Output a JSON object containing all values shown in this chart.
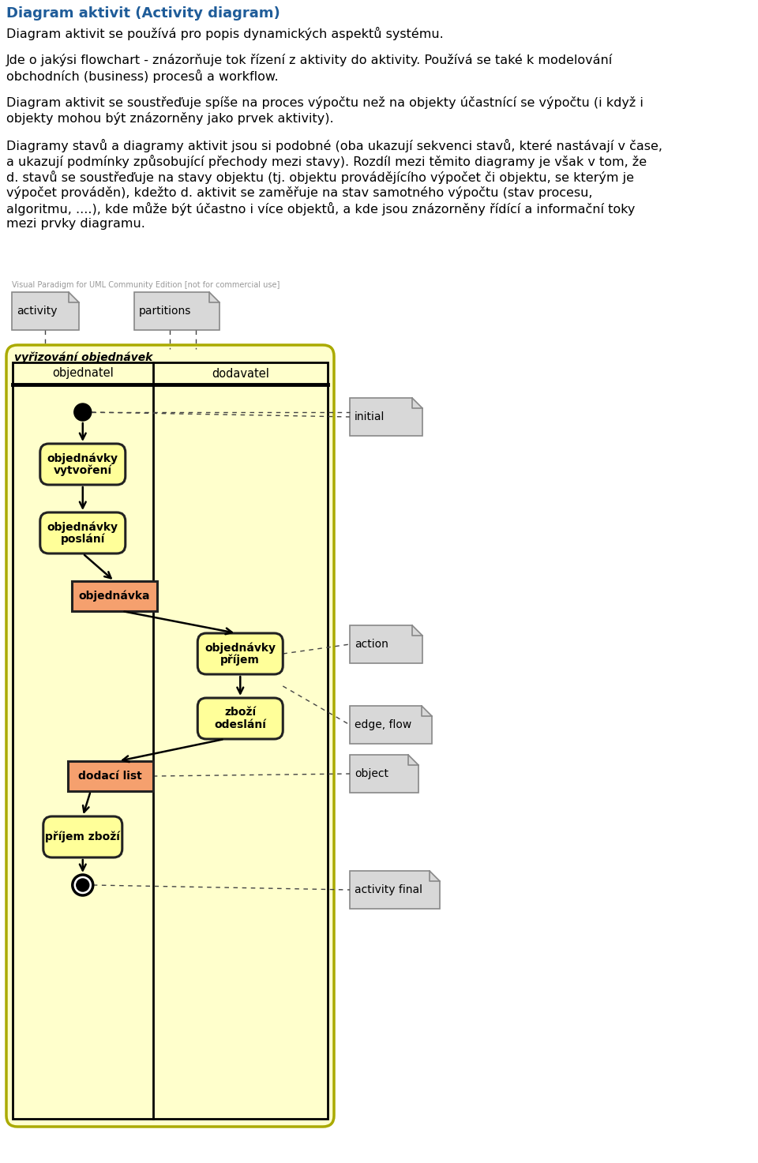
{
  "title": "Diagram aktivit (Activity diagram)",
  "title_color": "#1F5C99",
  "p1": "Diagram aktivit se používá pro popis dynamických aspekt\u0016 systému.",
  "p2_lines": [
    "Jde o jakýsi flowchart - znázorňuje tok řízení z aktivity do aktivity. Používá se také k modelování",
    "obchodních (business) procesů a workflow."
  ],
  "p3_lines": [
    "Diagram aktivit se soustřeďuje spíše na proces výpočtu než na objekty účastnící se výpočtu (i když i",
    "objekty mohou být znázorněny jako prvek aktivity)."
  ],
  "p4_lines": [
    "Diagramy stavů a diagramy aktivit jsou si podobné (oba ukazují sekvenci stavů, které nastávají v čase,",
    "a ukazují podmínky způsobující přechody mezi stavy). Rozdíl mezi těmito diagramy je však v tom, že",
    "d. stavů se soustřeďuje na stavy objektu (tj. objektu provádějícího výpočet či objektu, se kterým je",
    "výpočet prováděn), kdežto d. aktivit se zaměřuje na stav samotného výpočtu (stav procesu,",
    "algoritmu, ....), kde může být účastno i více objektů, a kde jsou znázorněny řídící a informační toky",
    "mezi prvky diagramu."
  ],
  "watermark": "Visual Paradigm for UML Community Edition [not for commercial use]",
  "diagram_bg": "#FFFFCC",
  "activity_yellow": "#FFFF99",
  "activity_orange": "#F5A06E",
  "note_fill": "#D8D8D8",
  "note_stroke": "#888888"
}
